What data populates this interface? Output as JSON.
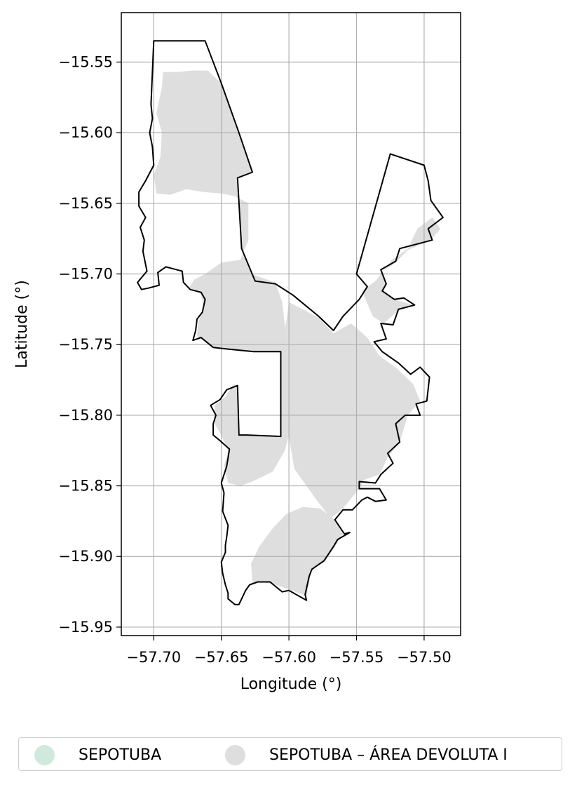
{
  "chart_data": {
    "type": "map",
    "xlabel": "Longitude (°)",
    "ylabel": "Latitude (°)",
    "xlim": [
      -57.724,
      -57.473
    ],
    "ylim": [
      -15.956,
      -15.515
    ],
    "xticks": [
      -57.7,
      -57.65,
      -57.6,
      -57.55,
      -57.5
    ],
    "xtick_labels": [
      "−57.70",
      "−57.65",
      "−57.60",
      "−57.55",
      "−57.50"
    ],
    "yticks": [
      -15.55,
      -15.6,
      -15.65,
      -15.7,
      -15.75,
      -15.8,
      -15.85,
      -15.9,
      -15.95
    ],
    "ytick_labels": [
      "−15.55",
      "−15.60",
      "−15.65",
      "−15.70",
      "−15.75",
      "−15.80",
      "−15.85",
      "−15.90",
      "−15.95"
    ],
    "grid": true,
    "legend_placement": "bottom-center",
    "legend": [
      {
        "label": "SEPOTUBA",
        "color": "#cfeadc"
      },
      {
        "label": "SEPOTUBA – ÁREA DEVOLUTA I",
        "color": "#dedede"
      }
    ],
    "fill_color": "#dedede",
    "outline_color": "#000000",
    "outline": [
      [
        -57.7,
        -15.535
      ],
      [
        -57.662,
        -15.535
      ],
      [
        -57.65,
        -15.565
      ],
      [
        -57.637,
        -15.6
      ],
      [
        -57.627,
        -15.628
      ],
      [
        -57.638,
        -15.632
      ],
      [
        -57.635,
        -15.682
      ],
      [
        -57.625,
        -15.705
      ],
      [
        -57.61,
        -15.707
      ],
      [
        -57.597,
        -15.715
      ],
      [
        -57.578,
        -15.73
      ],
      [
        -57.567,
        -15.74
      ],
      [
        -57.56,
        -15.73
      ],
      [
        -57.548,
        -15.718
      ],
      [
        -57.542,
        -15.709
      ],
      [
        -57.55,
        -15.7
      ],
      [
        -57.525,
        -15.615
      ],
      [
        -57.5,
        -15.623
      ],
      [
        -57.497,
        -15.634
      ],
      [
        -57.495,
        -15.648
      ],
      [
        -57.486,
        -15.66
      ],
      [
        -57.497,
        -15.668
      ],
      [
        -57.494,
        -15.676
      ],
      [
        -57.518,
        -15.682
      ],
      [
        -57.521,
        -15.691
      ],
      [
        -57.532,
        -15.697
      ],
      [
        -57.528,
        -15.707
      ],
      [
        -57.531,
        -15.712
      ],
      [
        -57.522,
        -15.718
      ],
      [
        -57.515,
        -15.717
      ],
      [
        -57.507,
        -15.722
      ],
      [
        -57.519,
        -15.725
      ],
      [
        -57.523,
        -15.736
      ],
      [
        -57.532,
        -15.735
      ],
      [
        -57.528,
        -15.746
      ],
      [
        -57.537,
        -15.748
      ],
      [
        -57.531,
        -15.755
      ],
      [
        -57.519,
        -15.763
      ],
      [
        -57.51,
        -15.771
      ],
      [
        -57.503,
        -15.766
      ],
      [
        -57.496,
        -15.773
      ],
      [
        -57.498,
        -15.79
      ],
      [
        -57.506,
        -15.792
      ],
      [
        -57.503,
        -15.8
      ],
      [
        -57.514,
        -15.8
      ],
      [
        -57.521,
        -15.806
      ],
      [
        -57.518,
        -15.819
      ],
      [
        -57.527,
        -15.827
      ],
      [
        -57.523,
        -15.834
      ],
      [
        -57.532,
        -15.842
      ],
      [
        -57.536,
        -15.848
      ],
      [
        -57.548,
        -15.847
      ],
      [
        -57.548,
        -15.852
      ],
      [
        -57.54,
        -15.852
      ],
      [
        -57.533,
        -15.852
      ],
      [
        -57.528,
        -15.86
      ],
      [
        -57.536,
        -15.861
      ],
      [
        -57.542,
        -15.858
      ],
      [
        -57.546,
        -15.86
      ],
      [
        -57.553,
        -15.867
      ],
      [
        -57.56,
        -15.867
      ],
      [
        -57.566,
        -15.874
      ],
      [
        -57.559,
        -15.884
      ],
      [
        -57.555,
        -15.883
      ],
      [
        -57.564,
        -15.888
      ],
      [
        -57.567,
        -15.893
      ],
      [
        -57.574,
        -15.903
      ],
      [
        -57.583,
        -15.909
      ],
      [
        -57.585,
        -15.914
      ],
      [
        -57.588,
        -15.927
      ],
      [
        -57.587,
        -15.931
      ],
      [
        -57.6,
        -15.924
      ],
      [
        -57.605,
        -15.925
      ],
      [
        -57.614,
        -15.918
      ],
      [
        -57.623,
        -15.918
      ],
      [
        -57.629,
        -15.92
      ],
      [
        -57.632,
        -15.924
      ],
      [
        -57.637,
        -15.934
      ],
      [
        -57.64,
        -15.934
      ],
      [
        -57.645,
        -15.93
      ],
      [
        -57.645,
        -15.926
      ],
      [
        -57.647,
        -15.92
      ],
      [
        -57.649,
        -15.912
      ],
      [
        -57.65,
        -15.904
      ],
      [
        -57.647,
        -15.897
      ],
      [
        -57.647,
        -15.892
      ],
      [
        -57.646,
        -15.886
      ],
      [
        -57.645,
        -15.878
      ],
      [
        -57.649,
        -15.868
      ],
      [
        -57.648,
        -15.855
      ],
      [
        -57.65,
        -15.848
      ],
      [
        -57.646,
        -15.836
      ],
      [
        -57.644,
        -15.824
      ],
      [
        -57.651,
        -15.818
      ],
      [
        -57.656,
        -15.814
      ],
      [
        -57.656,
        -15.806
      ],
      [
        -57.654,
        -15.8
      ],
      [
        -57.658,
        -15.793
      ],
      [
        -57.651,
        -15.789
      ],
      [
        -57.646,
        -15.782
      ],
      [
        -57.638,
        -15.779
      ],
      [
        -57.637,
        -15.814
      ],
      [
        -57.631,
        -15.814
      ],
      [
        -57.606,
        -15.815
      ],
      [
        -57.606,
        -15.755
      ],
      [
        -57.626,
        -15.755
      ],
      [
        -57.647,
        -15.753
      ],
      [
        -57.656,
        -15.752
      ],
      [
        -57.665,
        -15.745
      ],
      [
        -57.671,
        -15.747
      ],
      [
        -57.669,
        -15.74
      ],
      [
        -57.668,
        -15.732
      ],
      [
        -57.664,
        -15.727
      ],
      [
        -57.662,
        -15.718
      ],
      [
        -57.665,
        -15.713
      ],
      [
        -57.673,
        -15.711
      ],
      [
        -57.678,
        -15.706
      ],
      [
        -57.679,
        -15.698
      ],
      [
        -57.691,
        -15.695
      ],
      [
        -57.697,
        -15.699
      ],
      [
        -57.696,
        -15.708
      ],
      [
        -57.704,
        -15.71
      ],
      [
        -57.709,
        -15.711
      ],
      [
        -57.712,
        -15.706
      ],
      [
        -57.705,
        -15.698
      ],
      [
        -57.708,
        -15.684
      ],
      [
        -57.707,
        -15.676
      ],
      [
        -57.71,
        -15.667
      ],
      [
        -57.706,
        -15.66
      ],
      [
        -57.711,
        -15.652
      ],
      [
        -57.711,
        -15.642
      ],
      [
        -57.706,
        -15.634
      ],
      [
        -57.7,
        -15.623
      ],
      [
        -57.701,
        -15.61
      ],
      [
        -57.703,
        -15.6
      ],
      [
        -57.701,
        -15.59
      ],
      [
        -57.702,
        -15.58
      ],
      [
        -57.7,
        -15.535
      ]
    ],
    "fill_regions": [
      [
        [
          -57.693,
          -15.557
        ],
        [
          -57.682,
          -15.557
        ],
        [
          -57.672,
          -15.556
        ],
        [
          -57.66,
          -15.556
        ],
        [
          -57.65,
          -15.565
        ],
        [
          -57.637,
          -15.6
        ],
        [
          -57.627,
          -15.628
        ],
        [
          -57.638,
          -15.632
        ],
        [
          -57.635,
          -15.682
        ],
        [
          -57.628,
          -15.7
        ],
        [
          -57.61,
          -15.706
        ],
        [
          -57.605,
          -15.72
        ],
        [
          -57.602,
          -15.745
        ],
        [
          -57.598,
          -15.76
        ],
        [
          -57.592,
          -15.775
        ],
        [
          -57.596,
          -15.8
        ],
        [
          -57.603,
          -15.825
        ],
        [
          -57.612,
          -15.84
        ],
        [
          -57.627,
          -15.847
        ],
        [
          -57.636,
          -15.85
        ],
        [
          -57.645,
          -15.848
        ],
        [
          -57.648,
          -15.836
        ],
        [
          -57.645,
          -15.825
        ],
        [
          -57.65,
          -15.814
        ],
        [
          -57.655,
          -15.806
        ],
        [
          -57.655,
          -15.793
        ],
        [
          -57.647,
          -15.787
        ],
        [
          -57.641,
          -15.778
        ],
        [
          -57.638,
          -15.779
        ],
        [
          -57.638,
          -15.814
        ],
        [
          -57.606,
          -15.815
        ],
        [
          -57.606,
          -15.755
        ],
        [
          -57.626,
          -15.755
        ],
        [
          -57.647,
          -15.753
        ],
        [
          -57.658,
          -15.751
        ],
        [
          -57.668,
          -15.744
        ],
        [
          -57.667,
          -15.734
        ],
        [
          -57.663,
          -15.724
        ],
        [
          -57.665,
          -15.714
        ],
        [
          -57.674,
          -15.71
        ],
        [
          -57.67,
          -15.704
        ],
        [
          -57.662,
          -15.7
        ],
        [
          -57.65,
          -15.692
        ],
        [
          -57.636,
          -15.69
        ],
        [
          -57.63,
          -15.676
        ],
        [
          -57.63,
          -15.65
        ],
        [
          -57.64,
          -15.645
        ],
        [
          -57.65,
          -15.643
        ],
        [
          -57.663,
          -15.642
        ],
        [
          -57.676,
          -15.64
        ],
        [
          -57.688,
          -15.644
        ],
        [
          -57.698,
          -15.643
        ],
        [
          -57.7,
          -15.63
        ],
        [
          -57.695,
          -15.617
        ],
        [
          -57.694,
          -15.6
        ],
        [
          -57.698,
          -15.586
        ],
        [
          -57.694,
          -15.568
        ],
        [
          -57.693,
          -15.557
        ]
      ],
      [
        [
          -57.6,
          -15.72
        ],
        [
          -57.578,
          -15.731
        ],
        [
          -57.567,
          -15.742
        ],
        [
          -57.554,
          -15.735
        ],
        [
          -57.542,
          -15.745
        ],
        [
          -57.533,
          -15.758
        ],
        [
          -57.52,
          -15.767
        ],
        [
          -57.508,
          -15.778
        ],
        [
          -57.503,
          -15.79
        ],
        [
          -57.512,
          -15.8
        ],
        [
          -57.518,
          -15.819
        ],
        [
          -57.527,
          -15.83
        ],
        [
          -57.533,
          -15.842
        ],
        [
          -57.545,
          -15.846
        ],
        [
          -57.548,
          -15.852
        ],
        [
          -57.56,
          -15.866
        ],
        [
          -57.569,
          -15.873
        ],
        [
          -57.578,
          -15.862
        ],
        [
          -57.587,
          -15.85
        ],
        [
          -57.596,
          -15.838
        ],
        [
          -57.6,
          -15.815
        ],
        [
          -57.606,
          -15.815
        ],
        [
          -57.606,
          -15.76
        ],
        [
          -57.603,
          -15.74
        ],
        [
          -57.6,
          -15.72
        ]
      ],
      [
        [
          -57.602,
          -15.87
        ],
        [
          -57.59,
          -15.865
        ],
        [
          -57.577,
          -15.866
        ],
        [
          -57.566,
          -15.874
        ],
        [
          -57.56,
          -15.884
        ],
        [
          -57.566,
          -15.893
        ],
        [
          -57.574,
          -15.904
        ],
        [
          -57.583,
          -15.909
        ],
        [
          -57.587,
          -15.928
        ],
        [
          -57.598,
          -15.924
        ],
        [
          -57.61,
          -15.92
        ],
        [
          -57.62,
          -15.918
        ],
        [
          -57.627,
          -15.919
        ],
        [
          -57.628,
          -15.905
        ],
        [
          -57.622,
          -15.893
        ],
        [
          -57.612,
          -15.88
        ],
        [
          -57.602,
          -15.87
        ]
      ],
      [
        [
          -57.546,
          -15.712
        ],
        [
          -57.536,
          -15.705
        ],
        [
          -57.524,
          -15.69
        ],
        [
          -57.512,
          -15.682
        ],
        [
          -57.505,
          -15.668
        ],
        [
          -57.494,
          -15.66
        ],
        [
          -57.488,
          -15.668
        ],
        [
          -57.495,
          -15.676
        ],
        [
          -57.512,
          -15.683
        ],
        [
          -57.521,
          -15.692
        ],
        [
          -57.531,
          -15.698
        ],
        [
          -57.528,
          -15.707
        ],
        [
          -57.531,
          -15.712
        ],
        [
          -57.522,
          -15.718
        ],
        [
          -57.508,
          -15.722
        ],
        [
          -57.519,
          -15.726
        ],
        [
          -57.53,
          -15.735
        ],
        [
          -57.538,
          -15.73
        ],
        [
          -57.546,
          -15.712
        ]
      ]
    ]
  }
}
